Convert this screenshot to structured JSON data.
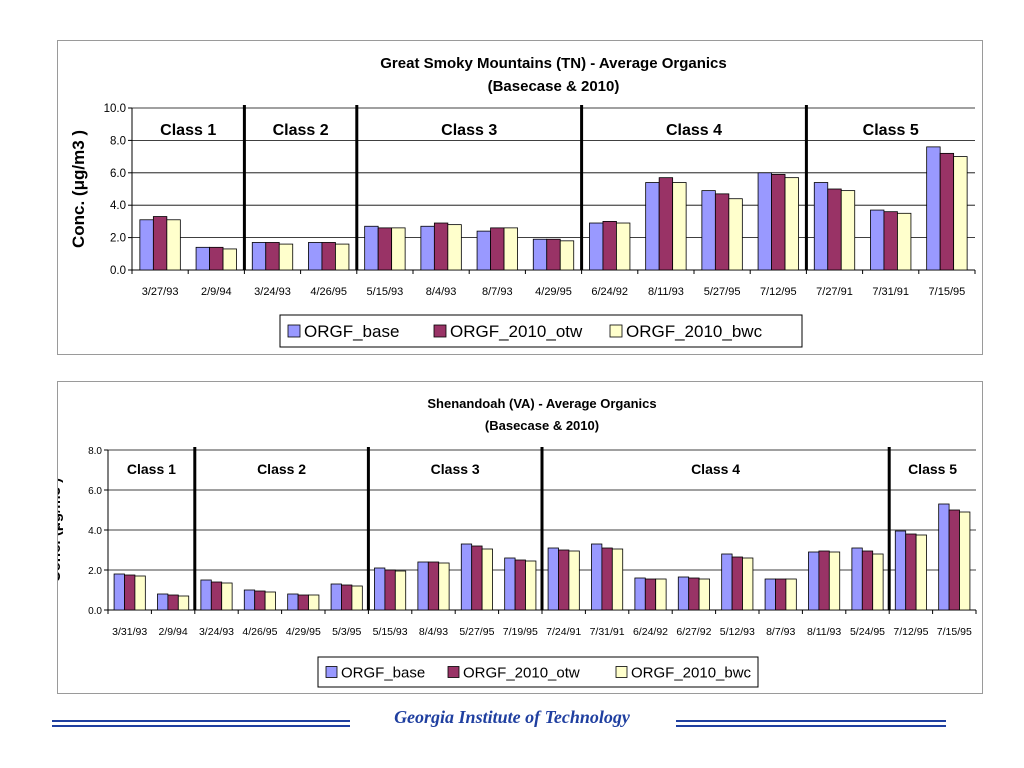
{
  "colors": {
    "base": "#9999ff",
    "otw": "#993366",
    "bwc": "#ffffcc",
    "footer": "#1f3fa0"
  },
  "footer": {
    "text": "Georgia Institute of Technology"
  },
  "chart_data": [
    {
      "type": "bar",
      "title": "Great Smoky Mountains (TN) - Average Organics",
      "subtitle": "(Basecase & 2010)",
      "ylabel": "Conc.  (μg/m3 )",
      "ylim": [
        0,
        10
      ],
      "yticks": [
        "0.0",
        "2.0",
        "4.0",
        "6.0",
        "8.0",
        "10.0"
      ],
      "grid": true,
      "legend_position": "bottom",
      "categories": [
        "3/27/93",
        "2/9/94",
        "3/24/93",
        "4/26/95",
        "5/15/93",
        "8/4/93",
        "8/7/93",
        "4/29/95",
        "6/24/92",
        "8/11/93",
        "5/27/95",
        "7/12/95",
        "7/27/91",
        "7/31/91",
        "7/15/95"
      ],
      "classes": [
        {
          "label": "Class 1",
          "start": 0,
          "end": 2
        },
        {
          "label": "Class 2",
          "start": 2,
          "end": 4
        },
        {
          "label": "Class 3",
          "start": 4,
          "end": 8
        },
        {
          "label": "Class 4",
          "start": 8,
          "end": 12
        },
        {
          "label": "Class 5",
          "start": 12,
          "end": 15
        }
      ],
      "series": [
        {
          "name": "ORGF_base",
          "color": "#9999ff",
          "values": [
            3.1,
            1.4,
            1.7,
            1.7,
            2.7,
            2.7,
            2.4,
            1.9,
            2.9,
            5.4,
            4.9,
            6.0,
            5.4,
            3.7,
            7.6
          ]
        },
        {
          "name": "ORGF_2010_otw",
          "color": "#993366",
          "values": [
            3.3,
            1.4,
            1.7,
            1.7,
            2.6,
            2.9,
            2.6,
            1.9,
            3.0,
            5.7,
            4.7,
            5.9,
            5.0,
            3.6,
            7.2
          ]
        },
        {
          "name": "ORGF_2010_bwc",
          "color": "#ffffcc",
          "values": [
            3.1,
            1.3,
            1.6,
            1.6,
            2.6,
            2.8,
            2.6,
            1.8,
            2.9,
            5.4,
            4.4,
            5.7,
            4.9,
            3.5,
            7.0
          ]
        }
      ]
    },
    {
      "type": "bar",
      "title": "Shenandoah (VA) - Average Organics",
      "subtitle": "(Basecase & 2010)",
      "ylabel": "Conc.  (μg/m3 )",
      "ylim": [
        0,
        8
      ],
      "yticks": [
        "0.0",
        "2.0",
        "4.0",
        "6.0",
        "8.0"
      ],
      "grid": true,
      "legend_position": "bottom",
      "categories": [
        "3/31/93",
        "2/9/94",
        "3/24/93",
        "4/26/95",
        "4/29/95",
        "5/3/95",
        "5/15/93",
        "8/4/93",
        "5/27/95",
        "7/19/95",
        "7/24/91",
        "7/31/91",
        "6/24/92",
        "6/27/92",
        "5/12/93",
        "8/7/93",
        "8/11/93",
        "5/24/95",
        "7/12/95",
        "7/15/95"
      ],
      "classes": [
        {
          "label": "Class 1",
          "start": 0,
          "end": 2
        },
        {
          "label": "Class 2",
          "start": 2,
          "end": 6
        },
        {
          "label": "Class 3",
          "start": 6,
          "end": 10
        },
        {
          "label": "Class 4",
          "start": 10,
          "end": 18
        },
        {
          "label": "Class 5",
          "start": 18,
          "end": 20
        }
      ],
      "series": [
        {
          "name": "ORGF_base",
          "color": "#9999ff",
          "values": [
            1.8,
            0.8,
            1.5,
            1.0,
            0.8,
            1.3,
            2.1,
            2.4,
            3.3,
            2.6,
            3.1,
            3.3,
            1.6,
            1.65,
            2.8,
            1.55,
            2.9,
            3.1,
            3.95,
            5.3
          ]
        },
        {
          "name": "ORGF_2010_otw",
          "color": "#993366",
          "values": [
            1.75,
            0.75,
            1.4,
            0.95,
            0.75,
            1.25,
            2.0,
            2.4,
            3.2,
            2.5,
            3.0,
            3.1,
            1.55,
            1.6,
            2.65,
            1.55,
            2.95,
            2.95,
            3.8,
            5.0
          ]
        },
        {
          "name": "ORGF_2010_bwc",
          "color": "#ffffcc",
          "values": [
            1.7,
            0.7,
            1.35,
            0.9,
            0.75,
            1.2,
            1.95,
            2.35,
            3.05,
            2.45,
            2.95,
            3.05,
            1.55,
            1.55,
            2.6,
            1.55,
            2.9,
            2.8,
            3.75,
            4.9
          ]
        }
      ]
    }
  ]
}
